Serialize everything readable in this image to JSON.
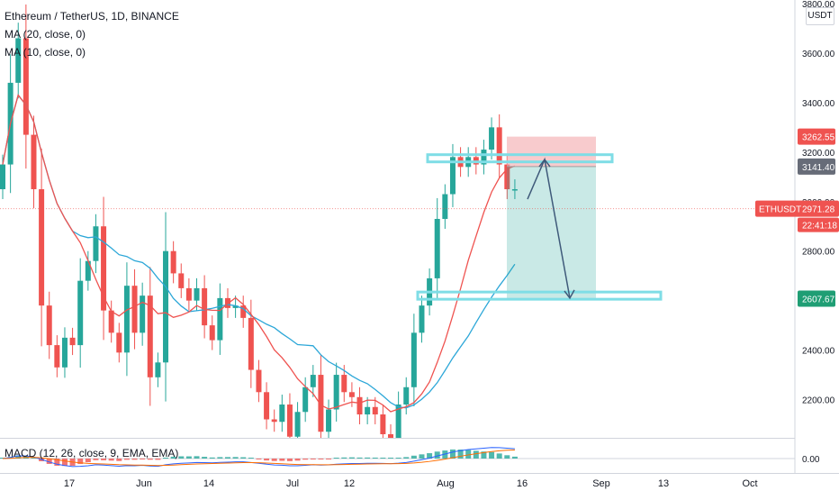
{
  "legend": {
    "title": "Ethereum / TetherUS, 1D, BINANCE",
    "ma20": "MA (20, close, 0)",
    "ma10": "MA (10, close, 0)",
    "macd": "MACD (12, 26, close, 9, EMA, EMA)"
  },
  "currency": "USDT",
  "colors": {
    "up": "#26a69a",
    "down": "#ef5350",
    "ma20": "#2ca7d8",
    "ma10": "#ef5350",
    "zone_line": "#7fdde6",
    "target_fill": "#26a69a",
    "stop_fill": "#f4a9ab",
    "projection": "#3f5a7a",
    "tag_price_red": "#ef5350",
    "tag_grey": "#676c78",
    "tag_green": "#1f9e74"
  },
  "chart_data": {
    "type": "candlestick",
    "symbol": "ETHUSDT",
    "interval": "1D",
    "ylim": [
      2100,
      3800
    ],
    "y_ticks": [
      2200,
      2400,
      2600,
      2800,
      3000,
      3200,
      3400,
      3600,
      3800
    ],
    "y_tick_labels": [
      "2200.00",
      "2400.00",
      "2600.00",
      "2800.00",
      "3000.00",
      "3200.00",
      "3400.00",
      "3600.00",
      "3800.00"
    ],
    "x_ticks": [
      "17",
      "Jun",
      "14",
      "Jul",
      "12",
      "Aug",
      "16",
      "Sep",
      "13",
      "Oct"
    ],
    "closes": [
      3150,
      3480,
      3660,
      3270,
      3050,
      2580,
      2420,
      2330,
      2450,
      2420,
      2680,
      2760,
      2900,
      2560,
      2470,
      2390,
      2660,
      2470,
      2620,
      2290,
      2350,
      2800,
      2710,
      2650,
      2600,
      2650,
      2500,
      2440,
      2610,
      2570,
      2580,
      2530,
      2320,
      2230,
      2120,
      2110,
      2180,
      2050,
      2150,
      2250,
      2300,
      2070,
      2160,
      2300,
      2230,
      2210,
      2140,
      2170,
      2140,
      2060,
      2030,
      2180,
      2250,
      2470,
      2580,
      2690,
      2930,
      3030,
      3180,
      3140,
      3180,
      3150,
      3210,
      3300,
      3150,
      3050,
      3050
    ],
    "last_close": 2971.28,
    "trade_setup": {
      "entry_zone": 3141.4,
      "stop_loss": 3262.55,
      "target": 2607.67,
      "support_level": 2620
    },
    "price_labels": {
      "stop": "3262.55",
      "entry": "3141.40",
      "last_symbol": "ETHUSDT",
      "last_price": "2971.28",
      "countdown": "22:41:18",
      "target": "2607.67"
    },
    "macd_axis_label": "0.00"
  }
}
